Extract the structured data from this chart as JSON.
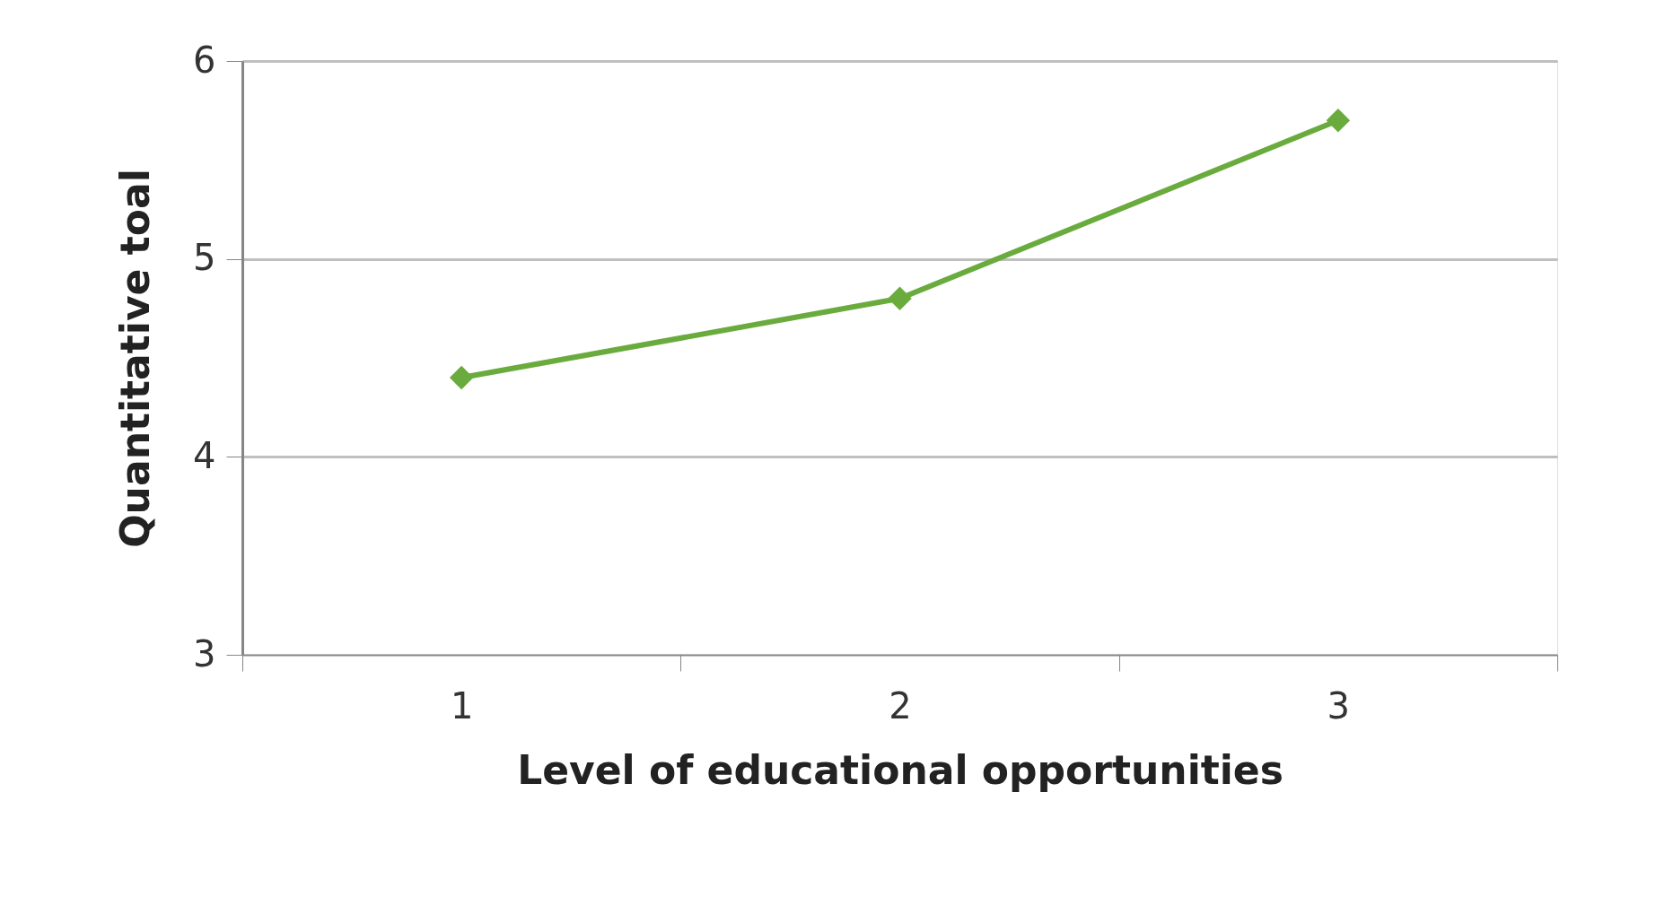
{
  "chart_data": {
    "type": "line",
    "xlabel": "Level of educational opportunities",
    "ylabel": "Quantitative toal",
    "categories": [
      "1",
      "2",
      "3"
    ],
    "series": [
      {
        "color": "#6aab3e",
        "values": [
          4.4,
          4.8,
          5.7
        ]
      }
    ],
    "ylim": [
      3,
      6
    ],
    "yticks": [
      3,
      4,
      5,
      6
    ],
    "grid": "y",
    "marker": "diamond",
    "line_style": "solid"
  }
}
